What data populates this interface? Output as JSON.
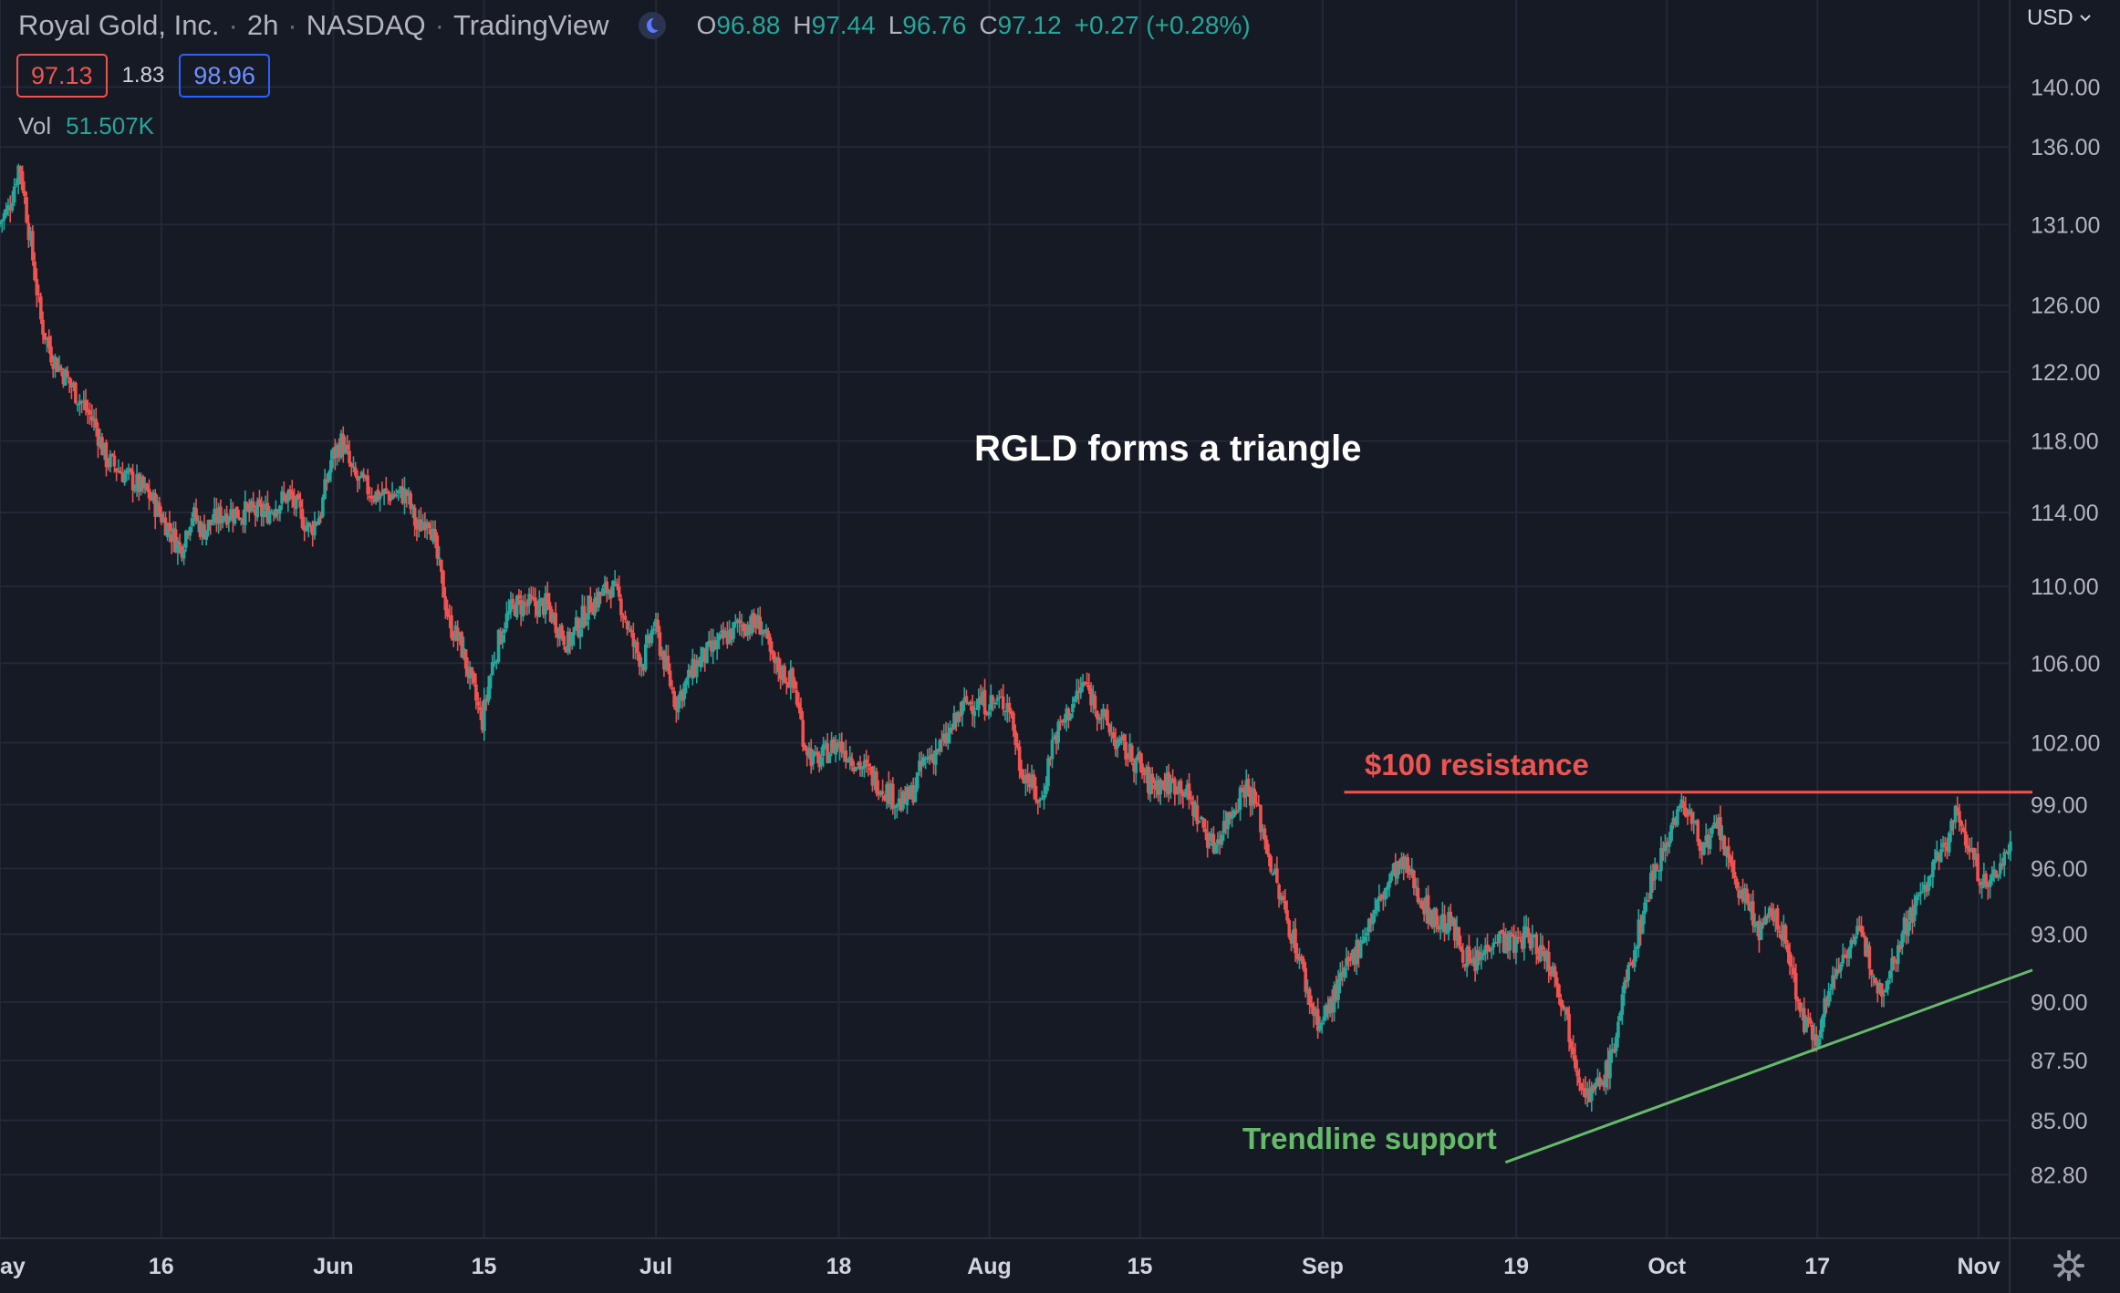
{
  "header": {
    "symbol_name": "Royal Gold, Inc.",
    "interval": "2h",
    "exchange": "NASDAQ",
    "source": "TradingView",
    "ohlc": {
      "o_label": "O",
      "o_value": "96.88",
      "h_label": "H",
      "h_value": "97.44",
      "l_label": "L",
      "l_value": "96.76",
      "c_label": "C",
      "c_value": "97.12",
      "change": "+0.27 (+0.28%)"
    },
    "bid": "97.13",
    "spread": "1.83",
    "ask": "98.96",
    "volume_label": "Vol",
    "volume_value": "51.507K"
  },
  "currency_label": "USD",
  "icons": [
    "moon-icon",
    "chevron-down-icon",
    "settings-gear-icon"
  ],
  "colors": {
    "up": "#26a69a",
    "down": "#ef5350",
    "background": "#161a25",
    "grid": "#242836",
    "resistance": "#ef5350",
    "support": "#66bb6a"
  },
  "annotations": {
    "title": "RGLD forms a triangle",
    "resistance_label": "$100 resistance",
    "support_label": "Trendline support"
  },
  "chart_data": {
    "type": "candlestick",
    "scale": "log",
    "y_tick_labels": [
      "140.00",
      "136.00",
      "131.00",
      "126.00",
      "122.00",
      "118.00",
      "114.00",
      "110.00",
      "106.00",
      "102.00",
      "99.00",
      "96.00",
      "93.00",
      "90.00",
      "87.50",
      "85.00",
      "82.80"
    ],
    "y_ticks": [
      140,
      136,
      131,
      126,
      122,
      118,
      114,
      110,
      106,
      102,
      99,
      96,
      93,
      90,
      87.5,
      85,
      82.8
    ],
    "ylim": [
      80.3,
      146
    ],
    "x_tick_labels": [
      "ay",
      "16",
      "Jun",
      "15",
      "Jul",
      "18",
      "Aug",
      "15",
      "Sep",
      "19",
      "Oct",
      "17",
      "Nov"
    ],
    "x_tick_dates": [
      "2022-05-01",
      "2022-05-16",
      "2022-06-01",
      "2022-06-15",
      "2022-07-01",
      "2022-07-18",
      "2022-08-01",
      "2022-08-15",
      "2022-09-01",
      "2022-09-19",
      "2022-10-03",
      "2022-10-17",
      "2022-11-01"
    ],
    "x_range": [
      "2022-05-01",
      "2022-11-06"
    ],
    "price_path": [
      [
        "2022-05-01",
        131
      ],
      [
        "2022-05-02",
        132
      ],
      [
        "2022-05-03",
        135
      ],
      [
        "2022-05-04",
        130
      ],
      [
        "2022-05-05",
        125
      ],
      [
        "2022-05-06",
        123
      ],
      [
        "2022-05-08",
        121
      ],
      [
        "2022-05-10",
        119
      ],
      [
        "2022-05-11",
        117
      ],
      [
        "2022-05-13",
        116
      ],
      [
        "2022-05-15",
        115
      ],
      [
        "2022-05-16",
        114
      ],
      [
        "2022-05-17",
        113
      ],
      [
        "2022-05-18",
        112
      ],
      [
        "2022-05-19",
        114
      ],
      [
        "2022-05-20",
        113
      ],
      [
        "2022-05-22",
        114
      ],
      [
        "2022-05-24",
        114
      ],
      [
        "2022-05-26",
        114
      ],
      [
        "2022-05-28",
        115
      ],
      [
        "2022-05-30",
        113
      ],
      [
        "2022-05-31",
        114
      ],
      [
        "2022-06-01",
        117
      ],
      [
        "2022-06-02",
        118
      ],
      [
        "2022-06-03",
        116
      ],
      [
        "2022-06-05",
        115
      ],
      [
        "2022-06-07",
        115
      ],
      [
        "2022-06-08",
        115
      ],
      [
        "2022-06-09",
        113
      ],
      [
        "2022-06-10",
        114
      ],
      [
        "2022-06-11",
        111
      ],
      [
        "2022-06-12",
        108
      ],
      [
        "2022-06-13",
        107
      ],
      [
        "2022-06-14",
        105
      ],
      [
        "2022-06-15",
        103
      ],
      [
        "2022-06-16",
        106
      ],
      [
        "2022-06-17",
        108
      ],
      [
        "2022-06-18",
        109
      ],
      [
        "2022-06-20",
        109
      ],
      [
        "2022-06-21",
        109
      ],
      [
        "2022-06-22",
        108
      ],
      [
        "2022-06-23",
        107
      ],
      [
        "2022-06-24",
        108
      ],
      [
        "2022-06-25",
        109
      ],
      [
        "2022-06-27",
        110
      ],
      [
        "2022-06-28",
        109
      ],
      [
        "2022-06-29",
        107
      ],
      [
        "2022-06-30",
        106
      ],
      [
        "2022-07-01",
        108
      ],
      [
        "2022-07-02",
        106
      ],
      [
        "2022-07-03",
        104
      ],
      [
        "2022-07-05",
        106
      ],
      [
        "2022-07-07",
        107
      ],
      [
        "2022-07-09",
        108
      ],
      [
        "2022-07-11",
        108
      ],
      [
        "2022-07-12",
        106
      ],
      [
        "2022-07-14",
        105
      ],
      [
        "2022-07-15",
        102
      ],
      [
        "2022-07-16",
        101
      ],
      [
        "2022-07-18",
        102
      ],
      [
        "2022-07-20",
        101
      ],
      [
        "2022-07-22",
        100
      ],
      [
        "2022-07-24",
        99
      ],
      [
        "2022-07-25",
        99.5
      ],
      [
        "2022-07-26",
        101
      ],
      [
        "2022-07-28",
        102
      ],
      [
        "2022-07-29",
        103
      ],
      [
        "2022-07-30",
        104
      ],
      [
        "2022-08-01",
        104
      ],
      [
        "2022-08-03",
        104
      ],
      [
        "2022-08-04",
        101
      ],
      [
        "2022-08-05",
        100
      ],
      [
        "2022-08-06",
        99
      ],
      [
        "2022-08-07",
        102
      ],
      [
        "2022-08-08",
        103
      ],
      [
        "2022-08-10",
        105
      ],
      [
        "2022-08-11",
        104
      ],
      [
        "2022-08-12",
        103
      ],
      [
        "2022-08-13",
        102
      ],
      [
        "2022-08-15",
        101
      ],
      [
        "2022-08-16",
        100
      ],
      [
        "2022-08-17",
        100
      ],
      [
        "2022-08-19",
        100
      ],
      [
        "2022-08-20",
        99
      ],
      [
        "2022-08-22",
        97
      ],
      [
        "2022-08-23",
        98
      ],
      [
        "2022-08-24",
        99
      ],
      [
        "2022-08-25",
        100
      ],
      [
        "2022-08-26",
        99
      ],
      [
        "2022-08-27",
        97
      ],
      [
        "2022-08-28",
        95
      ],
      [
        "2022-08-29",
        93.5
      ],
      [
        "2022-08-30",
        92
      ],
      [
        "2022-08-31",
        90
      ],
      [
        "2022-09-01",
        89
      ],
      [
        "2022-09-02",
        90
      ],
      [
        "2022-09-03",
        91
      ],
      [
        "2022-09-04",
        92
      ],
      [
        "2022-09-05",
        93
      ],
      [
        "2022-09-06",
        94
      ],
      [
        "2022-09-07",
        95
      ],
      [
        "2022-09-08",
        96
      ],
      [
        "2022-09-09",
        96
      ],
      [
        "2022-09-10",
        95
      ],
      [
        "2022-09-11",
        94
      ],
      [
        "2022-09-12",
        93.5
      ],
      [
        "2022-09-13",
        93.5
      ],
      [
        "2022-09-14",
        92.5
      ],
      [
        "2022-09-15",
        91.5
      ],
      [
        "2022-09-16",
        92
      ],
      [
        "2022-09-17",
        93
      ],
      [
        "2022-09-19",
        92.5
      ],
      [
        "2022-09-20",
        93
      ],
      [
        "2022-09-21",
        92.5
      ],
      [
        "2022-09-22",
        92
      ],
      [
        "2022-09-23",
        91
      ],
      [
        "2022-09-24",
        89
      ],
      [
        "2022-09-25",
        87
      ],
      [
        "2022-09-26",
        86
      ],
      [
        "2022-09-27",
        86.5
      ],
      [
        "2022-09-28",
        87.5
      ],
      [
        "2022-09-29",
        90
      ],
      [
        "2022-09-30",
        92
      ],
      [
        "2022-10-01",
        94
      ],
      [
        "2022-10-02",
        96
      ],
      [
        "2022-10-03",
        97
      ],
      [
        "2022-10-04",
        98.5
      ],
      [
        "2022-10-05",
        99
      ],
      [
        "2022-10-06",
        97.5
      ],
      [
        "2022-10-07",
        97
      ],
      [
        "2022-10-08",
        98
      ],
      [
        "2022-10-09",
        96
      ],
      [
        "2022-10-10",
        95
      ],
      [
        "2022-10-11",
        94
      ],
      [
        "2022-10-12",
        93
      ],
      [
        "2022-10-13",
        94
      ],
      [
        "2022-10-14",
        93
      ],
      [
        "2022-10-15",
        91
      ],
      [
        "2022-10-16",
        89
      ],
      [
        "2022-10-17",
        88.5
      ],
      [
        "2022-10-18",
        90
      ],
      [
        "2022-10-19",
        91.5
      ],
      [
        "2022-10-20",
        92.5
      ],
      [
        "2022-10-21",
        93
      ],
      [
        "2022-10-22",
        92
      ],
      [
        "2022-10-23",
        90.5
      ],
      [
        "2022-10-24",
        91.5
      ],
      [
        "2022-10-25",
        93
      ],
      [
        "2022-10-26",
        94
      ],
      [
        "2022-10-27",
        95
      ],
      [
        "2022-10-28",
        96
      ],
      [
        "2022-10-29",
        97
      ],
      [
        "2022-10-30",
        98.5
      ],
      [
        "2022-10-31",
        97.5
      ],
      [
        "2022-11-01",
        96
      ],
      [
        "2022-11-02",
        95
      ],
      [
        "2022-11-03",
        96
      ],
      [
        "2022-11-04",
        97
      ]
    ],
    "resistance_line": {
      "price": 99.6,
      "from": "2022-09-03",
      "to": "2022-11-06"
    },
    "support_line": {
      "from": [
        "2022-09-18",
        83.3
      ],
      "to": [
        "2022-11-06",
        91.4
      ]
    },
    "grid": true,
    "price_axis": "right"
  }
}
